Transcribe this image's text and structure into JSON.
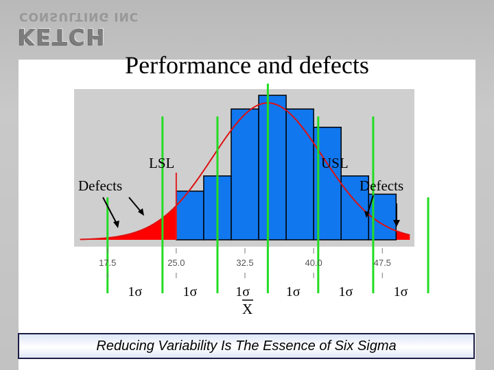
{
  "logo": {
    "line1": "CONSULTING INC",
    "line2": "KETCH"
  },
  "slide": {
    "title": "Performance and defects",
    "banner": "Reducing Variability Is The Essence of Six Sigma"
  },
  "chart_data": {
    "type": "bar",
    "title": "Performance and defects",
    "x_ticks": [
      17.5,
      25.0,
      32.5,
      40.0,
      47.5
    ],
    "x_tick_labels": [
      "17.5",
      "25.0",
      "32.5",
      "40.0",
      "47.5"
    ],
    "xlim": [
      14.0,
      51.0
    ],
    "ylim": [
      0,
      1.0
    ],
    "histogram": {
      "bin_edges": [
        25.0,
        28.0,
        31.0,
        34.0,
        37.0,
        40.0,
        43.0,
        46.0,
        49.0
      ],
      "relative_heights": [
        0.32,
        0.42,
        0.86,
        0.95,
        0.86,
        0.74,
        0.42,
        0.3
      ]
    },
    "normal_curve": {
      "mean": 35.0,
      "sigma": 6.0
    },
    "spec_limits": {
      "LSL": 25.0,
      "USL": 46.5
    },
    "sigma_lines": [
      17.5,
      23.5,
      29.5,
      35.0,
      40.5,
      46.5,
      52.5
    ],
    "labels": {
      "lsl": "LSL",
      "usl": "USL",
      "defects_left": "Defects",
      "defects_right": "Defects",
      "sigma": [
        "1σ",
        "1σ",
        "1σ",
        "1σ",
        "1σ",
        "1σ"
      ],
      "mean": "X"
    },
    "colors": {
      "bars": "#1177ee",
      "bar_border": "#000000",
      "curve": "#dd1111",
      "defect_fill": "#ff0000",
      "sigma_lines": "#22dd22",
      "plot_bg": "#cfcfcf"
    }
  }
}
